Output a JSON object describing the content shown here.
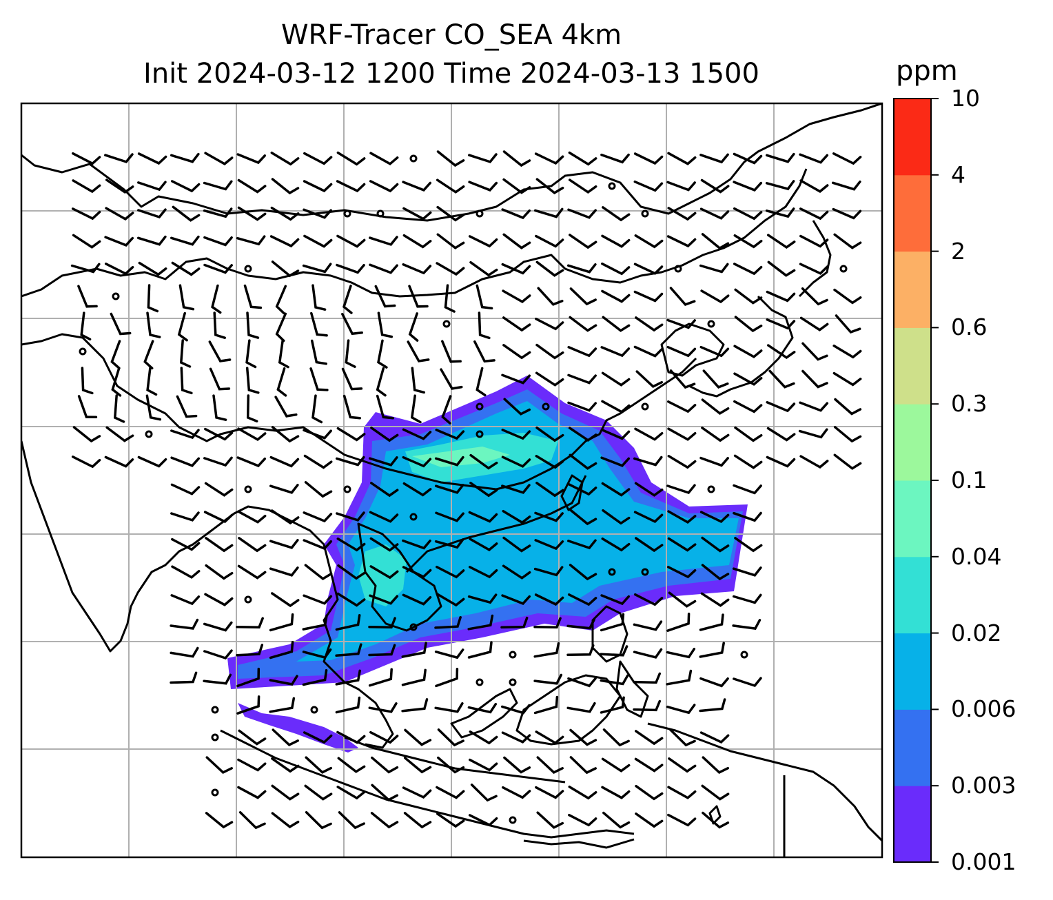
{
  "title": {
    "line1": "WRF-Tracer CO_SEA 4km",
    "line2": "Init 2024-03-12 1200 Time 2024-03-13 1500"
  },
  "colorbar": {
    "unit": "ppm",
    "ticks": [
      "0.001",
      "0.003",
      "0.006",
      "0.02",
      "0.04",
      "0.1",
      "0.3",
      "0.6",
      "2",
      "4",
      "10"
    ],
    "colors": [
      "#6a2cfb",
      "#3471f1",
      "#07b1e8",
      "#33e0d5",
      "#6cf6c0",
      "#9cf89c",
      "#cee08a",
      "#fcb065",
      "#fe6d3a",
      "#fb2a16"
    ]
  },
  "map": {
    "field": "CO tracer concentration",
    "gridlines": true,
    "overlay": "wind barbs",
    "coastline_color": "#000000",
    "grid_color": "#b0b0b0"
  }
}
